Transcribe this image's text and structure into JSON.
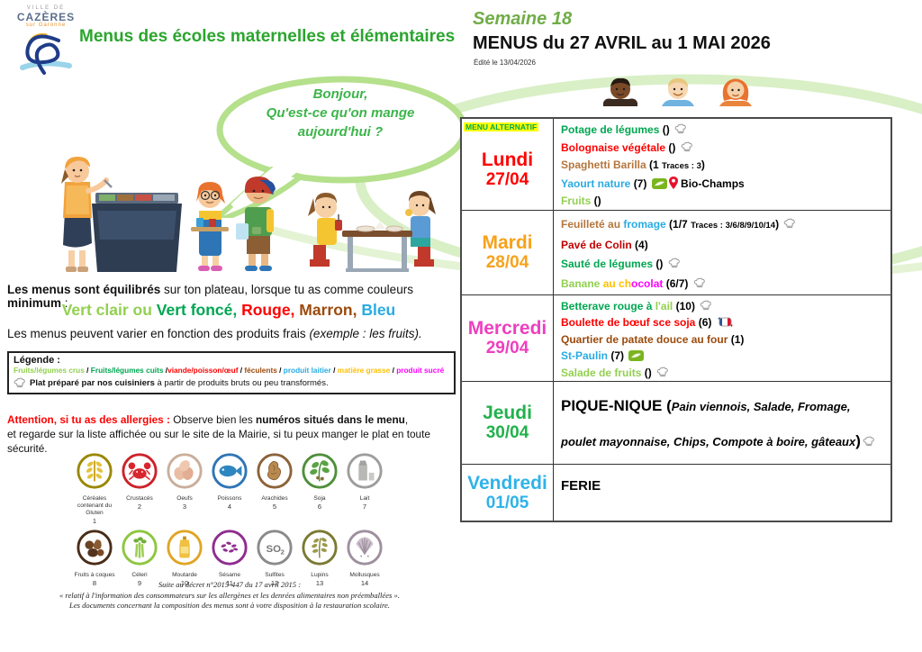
{
  "header": {
    "logo": {
      "line1": "VILLE DE",
      "line2": "CAZÈRES",
      "line3": "sur Garonne"
    },
    "title": "Menus des écoles maternelles et élémentaires",
    "week": "Semaine 18",
    "range_title": "MENUS du 27 AVRIL au 1 MAI 2026",
    "edited": "Édité le 13/04/2026"
  },
  "speech_bubble": {
    "line1": "Bonjour,",
    "line2": "Qu'est-ce qu'on mange",
    "line3": "aujourd'hui ?"
  },
  "intro": {
    "balance_line": [
      {
        "t": "Les menus sont équilibrés ",
        "b": true
      },
      {
        "t": "sur ton plateau, lorsque tu as comme couleurs ",
        "b": false
      },
      {
        "t": "minimum",
        "b": true
      },
      {
        "t": " :",
        "b": false
      }
    ],
    "colors_line": [
      {
        "t": "Vert clair ou ",
        "c": "#92d050"
      },
      {
        "t": "Vert foncé, ",
        "c": "#00a651"
      },
      {
        "t": "Rouge, ",
        "c": "#ff0000"
      },
      {
        "t": "Marron, ",
        "c": "#9c4a0c"
      },
      {
        "t": "Bleu",
        "c": "#29abe2"
      }
    ],
    "vary_line": [
      {
        "t": "Les menus peuvent varier en fonction des produits frais ",
        "b": false
      },
      {
        "t": "(exemple : les fruits).",
        "b": false,
        "i": true
      }
    ]
  },
  "legend": {
    "title": "Légende :",
    "items": [
      {
        "t": "Fruits/légumes crus",
        "c": "#92d050"
      },
      {
        "t": " / ",
        "c": "#000000"
      },
      {
        "t": "Fruits/légumes cuits",
        "c": "#00a651"
      },
      {
        "t": " /",
        "c": "#000000"
      },
      {
        "t": "viande/poisson/œuf",
        "c": "#ff0000"
      },
      {
        "t": " / ",
        "c": "#000000"
      },
      {
        "t": "féculents",
        "c": "#9c4a0c"
      },
      {
        "t": " / ",
        "c": "#000000"
      },
      {
        "t": "produit laitier",
        "c": "#29abe2"
      },
      {
        "t": " / ",
        "c": "#000000"
      },
      {
        "t": "matière grasse",
        "c": "#ffc000"
      },
      {
        "t": " / ",
        "c": "#000000"
      },
      {
        "t": "produit sucré",
        "c": "#ff00ff"
      }
    ],
    "chef_line": [
      {
        "t": "Plat préparé par nos cuisiniers",
        "b": true
      },
      {
        "t": " à partir de produits bruts ou peu transformés.",
        "b": false
      }
    ]
  },
  "allergy": {
    "line1": [
      {
        "t": "Attention, si tu as des allergies : ",
        "b": true,
        "c": "#ff0000"
      },
      {
        "t": "Observe bien les ",
        "b": false
      },
      {
        "t": "numéros situés dans le menu",
        "b": true
      },
      {
        "t": ",",
        "b": false
      }
    ],
    "line2": "et regarde sur la liste affichée ou sur le site de la Mairie, si tu peux manger le plat en toute sécurité."
  },
  "allergens": [
    {
      "label": "Céréales contenant du Gluten",
      "num": "1",
      "color": "#9a8700"
    },
    {
      "label": "Crustacés",
      "num": "2",
      "color": "#cc2229"
    },
    {
      "label": "Oeufs",
      "num": "3",
      "color": "#c9ae9b"
    },
    {
      "label": "Poissons",
      "num": "4",
      "color": "#2e75b6"
    },
    {
      "label": "Arachides",
      "num": "5",
      "color": "#8c6239"
    },
    {
      "label": "Soja",
      "num": "6",
      "color": "#4e8f3a"
    },
    {
      "label": "Lait",
      "num": "7",
      "color": "#9d9d9c"
    },
    {
      "label": "Fruits à coques",
      "num": "8",
      "color": "#4a2c17"
    },
    {
      "label": "Céleri",
      "num": "9",
      "color": "#8cc63f"
    },
    {
      "label": "Moutarde",
      "num": "10",
      "color": "#e0a526"
    },
    {
      "label": "Sésame",
      "num": "11",
      "color": "#8e2c8e"
    },
    {
      "label": "Sulfites",
      "num": "12",
      "color": "#8a8a8a"
    },
    {
      "label": "Lupins",
      "num": "13",
      "color": "#7a7a33"
    },
    {
      "label": "Mollusques",
      "num": "14",
      "color": "#9e8f9e"
    }
  ],
  "footer": {
    "line1": "Suite au décret n°2015-447 du 17 avril 2015 :",
    "line2": "« relatif à l'information des consommateurs sur les allergènes et les denrées alimentaires non préemballées ».",
    "line3": "Les documents concernant la composition des menus sont à votre disposition à la restauration scolaire."
  },
  "icons": {
    "chef": "chef-hat-icon",
    "bio": "organic-label-icon",
    "pin": "location-pin-icon",
    "beef": "french-beef-icon"
  },
  "menu": {
    "days": [
      {
        "name": "Lundi",
        "date": "27/04",
        "color": "#ff0000",
        "badge": "MENU ALTERNATIF",
        "items": [
          {
            "seg": [
              {
                "t": "Potage de légumes ",
                "c": "#00a651"
              },
              {
                "t": "() "
              },
              {
                "icon": "chef"
              }
            ]
          },
          {
            "seg": [
              {
                "t": "Bolognaise végétale ",
                "c": "#ff0000"
              },
              {
                "t": "() "
              },
              {
                "icon": "chef"
              }
            ]
          },
          {
            "seg": [
              {
                "t": "Spaghetti Barilla ",
                "c": "#b4763c"
              },
              {
                "t": "(1 "
              },
              {
                "t": "Traces : 3",
                "sz": 9.5
              },
              {
                "t": ")"
              }
            ]
          },
          {
            "seg": [
              {
                "t": "Yaourt nature ",
                "c": "#29abe2"
              },
              {
                "t": "(7) "
              },
              {
                "icon": "bio"
              },
              {
                "icon": "pin"
              },
              {
                "t": "  Bio-Champs"
              }
            ]
          },
          {
            "seg": [
              {
                "t": "Fruits ",
                "c": "#92d050"
              },
              {
                "t": "()"
              }
            ]
          }
        ]
      },
      {
        "name": "Mardi",
        "date": "28/04",
        "color": "#f7a21b",
        "badge": "",
        "items": [
          {
            "seg": [
              {
                "t": "Feuilleté au ",
                "c": "#b4763c"
              },
              {
                "t": "fromage ",
                "c": "#29abe2"
              },
              {
                "t": "(1/7 "
              },
              {
                "t": "Traces : 3/6/8/9/10/14",
                "sz": 9.5
              },
              {
                "t": ") "
              },
              {
                "icon": "chef"
              }
            ]
          },
          {
            "seg": [
              {
                "t": "Pavé de Colin ",
                "c": "#c00000"
              },
              {
                "t": "(4)"
              }
            ]
          },
          {
            "seg": [
              {
                "t": "Sauté de légumes ",
                "c": "#00a651"
              },
              {
                "t": "() "
              },
              {
                "icon": "chef"
              }
            ]
          },
          {
            "seg": [
              {
                "t": "Banane ",
                "c": "#92d050"
              },
              {
                "t": "au ch",
                "c": "#ffc000"
              },
              {
                "t": "ocolat ",
                "c": "#ff00ff"
              },
              {
                "t": "(6/7) "
              },
              {
                "icon": "chef"
              }
            ]
          }
        ]
      },
      {
        "name": "Mercredi",
        "date": "29/04",
        "color": "#ee3fc0",
        "badge": "",
        "items": [
          {
            "seg": [
              {
                "t": "Betterave rouge à ",
                "c": "#00a651"
              },
              {
                "t": "l'ail ",
                "c": "#92d050"
              },
              {
                "t": "(10) "
              },
              {
                "icon": "chef"
              }
            ]
          },
          {
            "seg": [
              {
                "t": "Boulette de bœuf sce soja ",
                "c": "#ff0000"
              },
              {
                "t": "(6) "
              },
              {
                "icon": "beef"
              }
            ]
          },
          {
            "seg": [
              {
                "t": "Quartier de patate douce au four ",
                "c": "#9c4a0c"
              },
              {
                "t": "(1)"
              }
            ]
          },
          {
            "seg": [
              {
                "t": "St-Paulin ",
                "c": "#29abe2"
              },
              {
                "t": "(7) "
              },
              {
                "icon": "bio"
              }
            ]
          },
          {
            "seg": [
              {
                "t": "Salade de fruits ",
                "c": "#92d050"
              },
              {
                "t": "() "
              },
              {
                "icon": "chef"
              }
            ]
          }
        ]
      },
      {
        "name": "Jeudi",
        "date": "30/04",
        "color": "#21b24b",
        "badge": "",
        "items": [
          {
            "seg": [
              {
                "t": "PIQUE-NIQUE (",
                "sz": 17
              },
              {
                "t": "Pain viennois, Salade, Fromage, poulet mayonnaise, Chips, Compote à boire, gâteaux",
                "i": true,
                "sz": 13
              },
              {
                "t": ")",
                "sz": 17
              },
              {
                "icon": "chef"
              }
            ]
          }
        ]
      },
      {
        "name": "Vendredi",
        "date": "01/05",
        "color": "#2fb3e8",
        "badge": "",
        "items": [
          {
            "seg": [
              {
                "t": "FERIE",
                "sz": 15
              }
            ]
          }
        ]
      }
    ]
  }
}
